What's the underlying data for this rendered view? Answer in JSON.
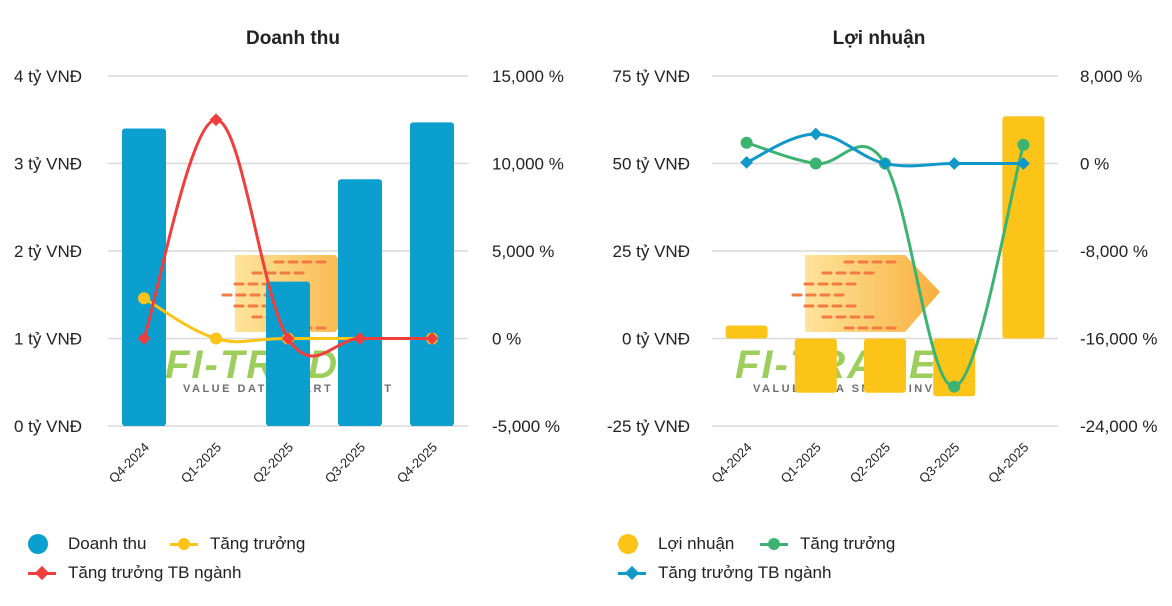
{
  "chart_data": [
    {
      "type": "bar",
      "title": "Doanh thu",
      "categories": [
        "Q4-2024",
        "Q1-2025",
        "Q2-2025",
        "Q3-2025",
        "Q4-2025"
      ],
      "y_left": {
        "ticks": [
          "0 tỷ VNĐ",
          "1 tỷ VNĐ",
          "2 tỷ VNĐ",
          "3 tỷ VNĐ",
          "4 tỷ VNĐ"
        ],
        "range": [
          0,
          4
        ]
      },
      "y_right": {
        "ticks": [
          "-5,000 %",
          "0 %",
          "5,000 %",
          "10,000 %",
          "15,000 %"
        ],
        "range": [
          -5000,
          15000
        ]
      },
      "series": [
        {
          "name": "Doanh thu",
          "kind": "bar",
          "axis": "left",
          "color": "#0a9fcf",
          "values": [
            3.4,
            0.0,
            1.65,
            2.82,
            3.47
          ]
        },
        {
          "name": "Tăng trưởng",
          "kind": "line",
          "axis": "right",
          "marker": "circle",
          "color": "#fcc419",
          "values": [
            2300,
            0,
            0,
            null,
            0
          ]
        },
        {
          "name": "Tăng trưởng TB ngành",
          "kind": "line",
          "axis": "right",
          "marker": "diamond",
          "color": "#f03e3e",
          "values": [
            0,
            12500,
            0,
            0,
            0
          ]
        }
      ],
      "legend": [
        "Doanh thu",
        "Tăng trưởng",
        "Tăng trưởng TB ngành"
      ]
    },
    {
      "type": "bar",
      "title": "Lợi nhuận",
      "categories": [
        "Q4-2024",
        "Q1-2025",
        "Q2-2025",
        "Q3-2025",
        "Q4-2025"
      ],
      "y_left": {
        "ticks": [
          "-25 tỷ VNĐ",
          "0 tỷ VNĐ",
          "25 tỷ VNĐ",
          "50 tỷ VNĐ",
          "75 tỷ VNĐ"
        ],
        "range": [
          -25,
          75
        ]
      },
      "y_right": {
        "ticks": [
          "-24,000 %",
          "-16,000 %",
          "-8,000 %",
          "0 %",
          "8,000 %"
        ],
        "range": [
          -24000,
          8000
        ]
      },
      "series": [
        {
          "name": "Lợi nhuận",
          "kind": "bar",
          "axis": "left",
          "color": "#fcc419",
          "values": [
            3.7,
            -15.5,
            -15.5,
            -16.5,
            63.5
          ]
        },
        {
          "name": "Tăng trưởng",
          "kind": "line",
          "axis": "right",
          "marker": "circle",
          "color": "#3cb371",
          "values": [
            1900,
            0,
            0,
            -20400,
            1700
          ]
        },
        {
          "name": "Tăng trưởng TB ngành",
          "kind": "line",
          "axis": "right",
          "marker": "diamond",
          "color": "#1098c8",
          "values": [
            100,
            2700,
            0,
            0,
            0
          ]
        }
      ],
      "legend": [
        "Lợi nhuận",
        "Tăng trưởng",
        "Tăng trưởng TB ngành"
      ]
    }
  ],
  "watermark": {
    "brand": "FI-TRADE",
    "tagline": "VALUE DATA  SMART INVEST"
  }
}
